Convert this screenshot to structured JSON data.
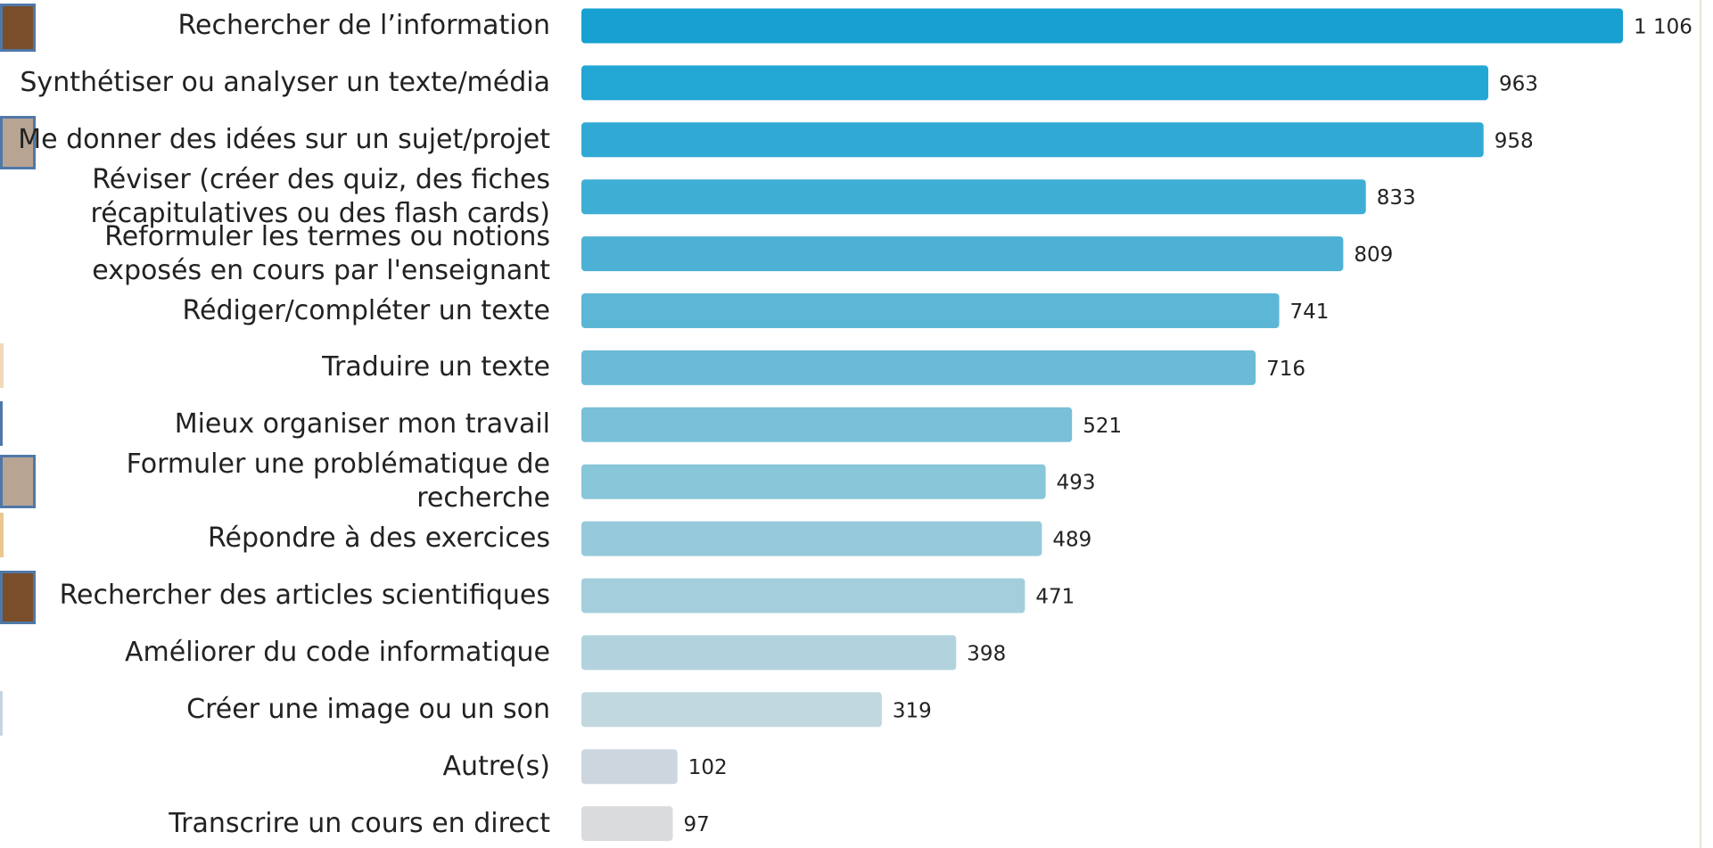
{
  "chart_data": {
    "type": "bar",
    "orientation": "horizontal",
    "categories": [
      "Rechercher de l’information",
      "Synthétiser ou analyser un texte/média",
      "Me donner des idées sur un sujet/projet",
      "Réviser (créer des quiz, des fiches\nrécapitulatives ou des flash cards)",
      "Reformuler les termes ou notions\nexposés en cours par l'enseignant",
      "Rédiger/compléter un texte",
      "Traduire un texte",
      "Mieux organiser mon travail",
      "Formuler une problématique de\nrecherche",
      "Répondre à des exercices",
      "Rechercher des articles scientifiques",
      "Améliorer du code informatique",
      "Créer une image ou un son",
      "Autre(s)",
      "Transcrire un cours en direct"
    ],
    "values": [
      1106,
      963,
      958,
      833,
      809,
      741,
      716,
      521,
      493,
      489,
      471,
      398,
      319,
      102,
      97
    ],
    "value_labels": [
      "1 106",
      "963",
      "958",
      "833",
      "809",
      "741",
      "716",
      "521",
      "493",
      "489",
      "471",
      "398",
      "319",
      "102",
      "97"
    ],
    "colors": [
      "#16a1d0",
      "#22a6d3",
      "#30aad4",
      "#3eaed5",
      "#4cb1d5",
      "#5cb7d6",
      "#6bbbd7",
      "#79c0d8",
      "#88c6da",
      "#96cadb",
      "#a4cedc",
      "#b2d3dd",
      "#c1d8de",
      "#cdd6df",
      "#dadbdd"
    ]
  }
}
